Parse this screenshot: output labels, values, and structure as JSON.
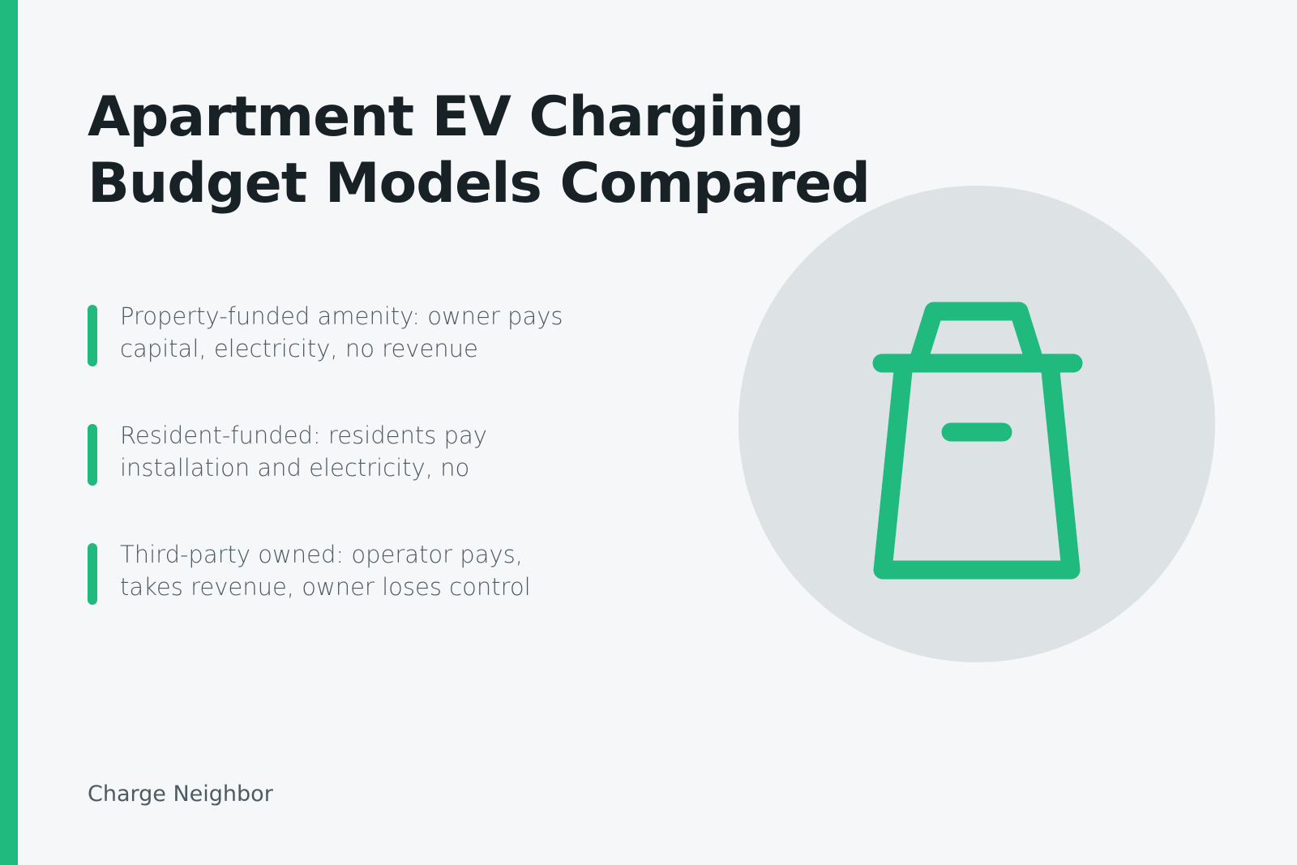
{
  "header": {
    "title_lines": [
      "Apartment EV Charging",
      "Budget Models Compared"
    ]
  },
  "items": [
    {
      "lines": [
        "Property-funded amenity: owner pays",
        "capital, electricity, no revenue"
      ]
    },
    {
      "lines": [
        "Resident-funded: residents pay",
        "installation and electricity, no"
      ]
    },
    {
      "lines": [
        "Third-party owned: operator pays,",
        "takes revenue, owner loses control"
      ]
    }
  ],
  "footer": {
    "brand": "Charge Neighbor"
  }
}
